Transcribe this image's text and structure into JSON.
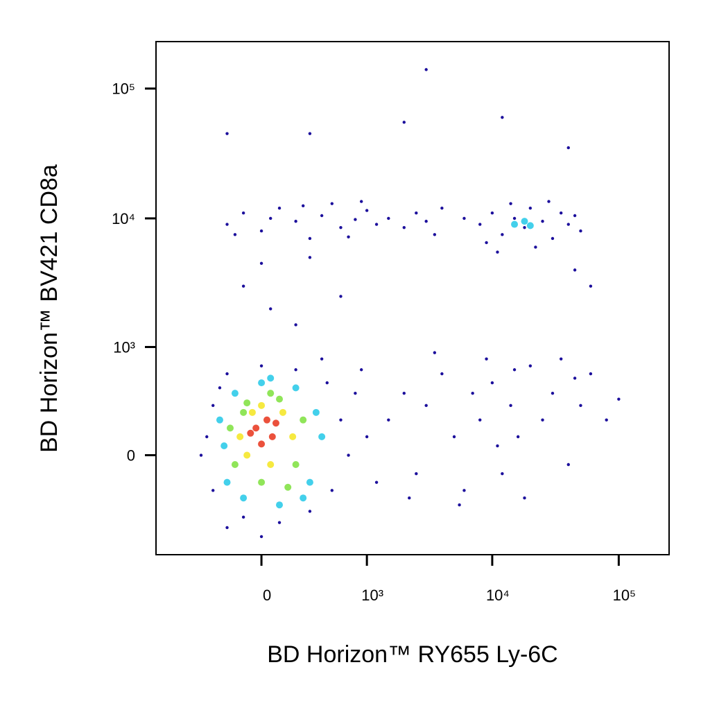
{
  "chart_data": {
    "type": "scatter",
    "xlabel": "BD Horizon™ RY655 Ly-6C",
    "ylabel": "BD Horizon™ BV421 CD8a",
    "xscale": "biexponential",
    "yscale": "biexponential",
    "xlim": [
      -1000,
      250000
    ],
    "ylim": [
      -850,
      230000
    ],
    "xticks": [
      0,
      {
        "value": 1000,
        "label": "10³"
      },
      {
        "value": 10000,
        "label": "10⁴"
      },
      {
        "value": 100000,
        "label": "10⁵"
      }
    ],
    "yticks": [
      0,
      {
        "value": 1000,
        "label": "10³"
      },
      {
        "value": 10000,
        "label": "10⁴"
      },
      {
        "value": 100000,
        "label": "10⁵"
      }
    ],
    "series": [
      {
        "color": "#1c0f9c",
        "x": [
          -200,
          -100,
          0,
          100,
          200,
          300,
          400,
          500,
          600,
          800,
          1000,
          -150,
          50,
          250,
          700,
          900,
          1200,
          1500,
          2000,
          2500,
          3000,
          3500,
          4000,
          8000,
          10000,
          12000,
          15000,
          18000,
          20000,
          25000,
          30000,
          35000,
          40000,
          50000,
          9000,
          14000,
          22000,
          28000,
          45000,
          6000,
          11000,
          -100,
          50,
          200,
          0,
          600,
          300,
          60000,
          45000,
          300,
          2000,
          3000,
          12000,
          40000,
          -200,
          1500,
          2000,
          2500,
          3000,
          4000,
          5000,
          6000,
          7000,
          8000,
          10000,
          12000,
          14000,
          16000,
          20000,
          25000,
          30000,
          40000,
          50000,
          60000,
          80000,
          100000,
          3500,
          9000,
          18000,
          35000,
          2200,
          5500,
          11000,
          15000,
          45000,
          -400,
          -300,
          -300,
          -200,
          -100,
          0,
          100,
          200,
          300,
          450,
          500,
          600,
          700,
          800,
          1000,
          1200,
          -350,
          400,
          -200,
          0,
          900,
          -250
        ],
        "values": [
          9000,
          11000,
          8000,
          12000,
          9500,
          7000,
          10500,
          13000,
          8500,
          9800,
          11500,
          7500,
          10000,
          12500,
          7200,
          13500,
          9000,
          10000,
          8500,
          11000,
          9500,
          7500,
          12000,
          9000,
          11000,
          7500,
          10000,
          8500,
          12000,
          9500,
          7000,
          11000,
          9000,
          8000,
          6500,
          13000,
          6000,
          13500,
          10500,
          10000,
          5500,
          3000,
          2000,
          1500,
          4500,
          2500,
          5000,
          3000,
          4000,
          45000,
          55000,
          140000,
          60000,
          35000,
          45000,
          200,
          400,
          -100,
          300,
          600,
          100,
          -200,
          400,
          200,
          500,
          -100,
          300,
          100,
          700,
          200,
          400,
          -50,
          300,
          600,
          200,
          350,
          900,
          800,
          -250,
          800,
          -250,
          -300,
          50,
          650,
          550,
          0,
          300,
          -200,
          600,
          -400,
          700,
          -450,
          650,
          -350,
          500,
          -200,
          200,
          0,
          400,
          100,
          -150,
          100,
          800,
          -500,
          -600,
          650,
          450
        ]
      },
      {
        "color": "#22c8e8",
        "x": [
          -250,
          -200,
          -150,
          -100,
          0,
          100,
          200,
          300,
          350,
          250,
          -220,
          50,
          400,
          15000,
          18000,
          20000
        ],
        "values": [
          200,
          -150,
          400,
          -250,
          500,
          -300,
          450,
          -150,
          250,
          -250,
          50,
          550,
          100,
          9000,
          9500,
          8800
        ]
      },
      {
        "color": "#7de03c",
        "x": [
          -180,
          -150,
          -80,
          0,
          100,
          200,
          250,
          150,
          -100,
          50
        ],
        "values": [
          150,
          -50,
          320,
          -150,
          350,
          -50,
          200,
          -180,
          250,
          400
        ]
      },
      {
        "color": "#f5e51e",
        "x": [
          -120,
          -50,
          50,
          120,
          180,
          -80,
          0
        ],
        "values": [
          100,
          250,
          -50,
          250,
          100,
          0,
          300
        ]
      },
      {
        "color": "#e8321a",
        "x": [
          -30,
          30,
          60,
          -60,
          0,
          80
        ],
        "values": [
          150,
          200,
          100,
          120,
          60,
          180
        ]
      }
    ]
  }
}
